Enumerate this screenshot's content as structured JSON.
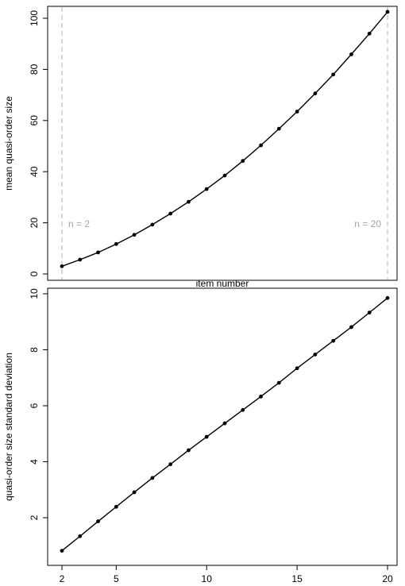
{
  "chart_data": [
    {
      "type": "line",
      "title": "",
      "xlabel": "item number",
      "ylabel": "mean quasi-order size",
      "x": [
        2,
        3,
        4,
        5,
        6,
        7,
        8,
        9,
        10,
        11,
        12,
        13,
        14,
        15,
        16,
        17,
        18,
        19,
        20
      ],
      "series": [
        {
          "values": [
            3.0,
            5.6,
            8.4,
            11.7,
            15.3,
            19.3,
            23.6,
            28.2,
            33.2,
            38.5,
            44.2,
            50.3,
            56.8,
            63.5,
            70.6,
            78.0,
            85.9,
            94.0,
            102.5
          ]
        }
      ],
      "xlim": [
        2,
        20
      ],
      "ylim": [
        0,
        100
      ],
      "yticks": [
        0,
        20,
        40,
        60,
        80,
        100
      ],
      "xticks": [],
      "vlines": [
        2,
        20
      ],
      "annotations": [
        {
          "text": "n = 2",
          "x": 2
        },
        {
          "text": "n = 20",
          "x": 20
        }
      ],
      "grid": false,
      "legend": "none",
      "colors": {
        "line": "#000000",
        "marker": "#000000",
        "vline": "#bfbfbf",
        "annotation": "#a6a6a6"
      }
    },
    {
      "type": "line",
      "title": "",
      "xlabel": "",
      "ylabel": "quasi-order size standard deviation",
      "x": [
        2,
        3,
        4,
        5,
        6,
        7,
        8,
        9,
        10,
        11,
        12,
        13,
        14,
        15,
        16,
        17,
        18,
        19,
        20
      ],
      "series": [
        {
          "values": [
            0.82,
            1.34,
            1.87,
            2.39,
            2.91,
            3.42,
            3.91,
            4.41,
            4.89,
            5.37,
            5.85,
            6.33,
            6.82,
            7.34,
            7.83,
            8.32,
            8.81,
            9.33,
            9.85
          ]
        }
      ],
      "xlim": [
        2,
        20
      ],
      "ylim": [
        1,
        10
      ],
      "yticks": [
        2,
        4,
        6,
        8,
        10
      ],
      "xticks": [
        2,
        5,
        10,
        15,
        20
      ],
      "grid": false,
      "legend": "none",
      "colors": {
        "line": "#000000",
        "marker": "#000000"
      }
    }
  ]
}
